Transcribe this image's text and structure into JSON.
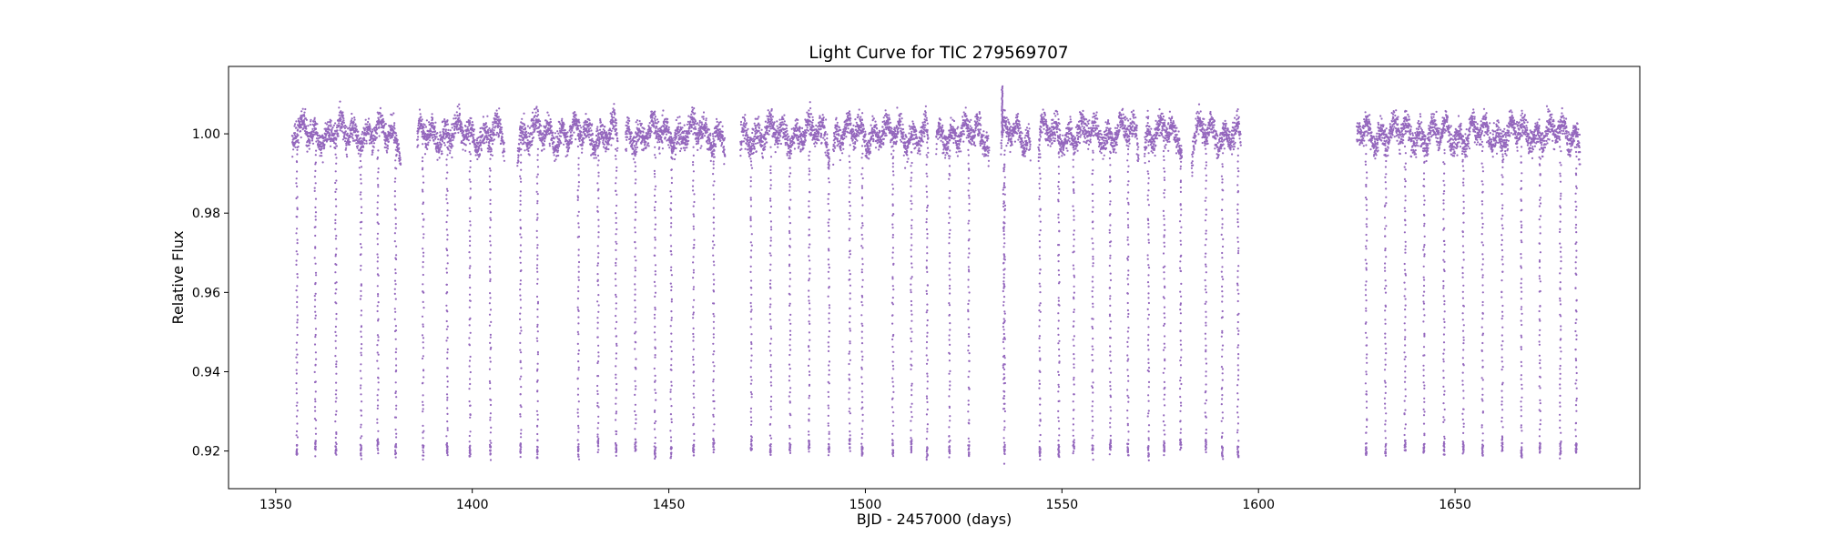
{
  "chart_data": {
    "type": "scatter",
    "title": "Light Curve for TIC 279569707",
    "xlabel": "BJD - 2457000 (days)",
    "ylabel": "Relative Flux",
    "xlim": [
      1338,
      1697
    ],
    "ylim": [
      0.9105,
      1.017
    ],
    "xticks": [
      1350,
      1400,
      1450,
      1500,
      1550,
      1600,
      1650
    ],
    "yticks": [
      0.92,
      0.94,
      0.96,
      0.98,
      1.0
    ],
    "xtick_labels": [
      "1350",
      "1400",
      "1450",
      "1500",
      "1550",
      "1600",
      "1650"
    ],
    "ytick_labels": [
      "0.92",
      "0.94",
      "0.96",
      "0.98",
      "1.00"
    ],
    "grid": false,
    "marker_color": "#9467bd",
    "series": [
      {
        "segments": [
          {
            "start": 1354.2,
            "end": 1381.8
          },
          {
            "start": 1386.0,
            "end": 1408.2
          },
          {
            "start": 1411.5,
            "end": 1437.0
          },
          {
            "start": 1439.0,
            "end": 1464.3
          },
          {
            "start": 1468.2,
            "end": 1490.8
          },
          {
            "start": 1491.8,
            "end": 1516.0
          },
          {
            "start": 1518.0,
            "end": 1531.5
          },
          {
            "start": 1534.5,
            "end": 1542.0
          },
          {
            "start": 1544.0,
            "end": 1569.5
          },
          {
            "start": 1571.0,
            "end": 1580.5
          },
          {
            "start": 1583.0,
            "end": 1595.5
          },
          {
            "start": 1625.0,
            "end": 1681.8
          }
        ],
        "transit_times": [
          1355.4,
          1360.1,
          1365.3,
          1371.7,
          1376.0,
          1380.5,
          1387.5,
          1393.6,
          1399.4,
          1404.6,
          1412.3,
          1416.6,
          1427.0,
          1432.0,
          1436.6,
          1441.5,
          1446.5,
          1450.6,
          1456.3,
          1461.4,
          1471.0,
          1475.9,
          1480.8,
          1485.7,
          1490.7,
          1496.0,
          1499.2,
          1507.0,
          1511.7,
          1515.7,
          1521.4,
          1526.3,
          1535.4,
          1544.4,
          1549.2,
          1553.0,
          1557.8,
          1562.3,
          1566.8,
          1572.0,
          1576.0,
          1580.2,
          1586.6,
          1590.8,
          1594.8,
          1627.4,
          1632.3,
          1637.3,
          1642.1,
          1647.2,
          1652.1,
          1657.0,
          1662.0,
          1666.9,
          1671.6,
          1676.8,
          1680.8
        ],
        "transit_depth_min": 0.918,
        "baseline_flux": 1.0,
        "baseline_scatter": 0.003,
        "brightening_event": {
          "x": 1534.8,
          "y_max": 1.012
        }
      }
    ]
  }
}
